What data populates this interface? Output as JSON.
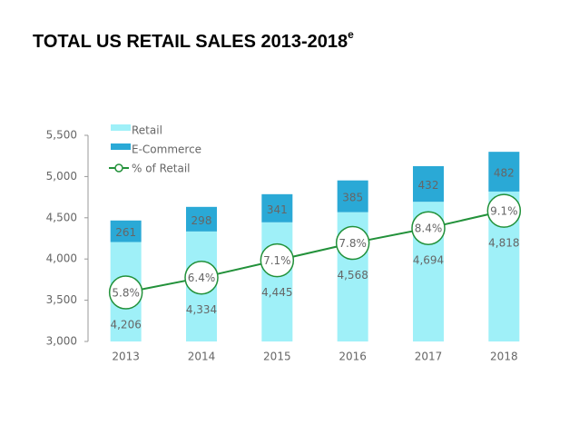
{
  "chart_data": {
    "type": "stacked_bar_line",
    "title": "TOTAL US RETAIL SALES 2013-2018",
    "title_superscript": "e",
    "categories": [
      "2013",
      "2014",
      "2015",
      "2016",
      "2017",
      "2018"
    ],
    "series": [
      {
        "name": "Retail",
        "color": "#9ff0f8",
        "values": [
          4206,
          4334,
          4445,
          4568,
          4694,
          4818
        ],
        "value_labels": [
          "4,206",
          "4,334",
          "4,445",
          "4,568",
          "4,694",
          "4,818"
        ]
      },
      {
        "name": "E-Commerce",
        "color": "#2aa9d6",
        "values": [
          261,
          298,
          341,
          385,
          432,
          482
        ]
      },
      {
        "name": "% of Retail",
        "color": "#22913a",
        "axis": "y2",
        "values": [
          5.8,
          6.4,
          7.1,
          7.8,
          8.4,
          9.1
        ],
        "value_labels": [
          "5.8%",
          "6.4%",
          "7.1%",
          "7.8%",
          "8.4%",
          "9.1%"
        ]
      }
    ],
    "ylim": [
      3000,
      5500
    ],
    "yticks": [
      {
        "value": 3000,
        "label": "3,000"
      },
      {
        "value": 3500,
        "label": "3,500"
      },
      {
        "value": 4000,
        "label": "4,000"
      },
      {
        "value": 4500,
        "label": "4,500"
      },
      {
        "value": 5000,
        "label": "5,000"
      },
      {
        "value": 5500,
        "label": "5,500"
      }
    ],
    "y2lim": [
      3.82,
      12.15
    ],
    "legend": "top-left",
    "grid": false
  }
}
